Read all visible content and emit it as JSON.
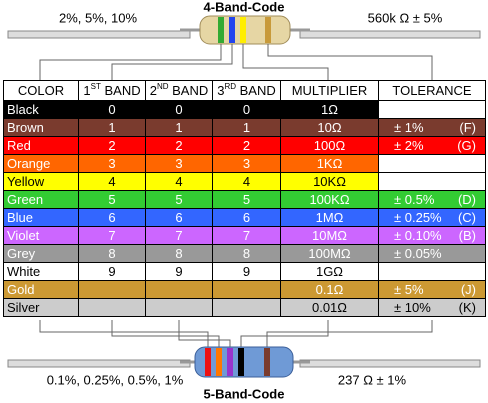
{
  "top": {
    "title": "4-Band-Code",
    "left_label": "2%, 5%, 10%",
    "right_label": "560k Ω  ± 5%"
  },
  "bottom": {
    "title": "5-Band-Code",
    "left_label": "0.1%, 0.25%, 0.5%, 1%",
    "right_label": "237 Ω  ± 1%"
  },
  "table": {
    "headers": [
      {
        "text": "COLOR"
      },
      {
        "num": "1",
        "sup": "ST",
        "text": "BAND"
      },
      {
        "num": "2",
        "sup": "ND",
        "text": "BAND"
      },
      {
        "num": "3",
        "sup": "RD",
        "text": "BAND"
      },
      {
        "text": "MULTIPLIER"
      },
      {
        "text": "TOLERANCE"
      }
    ],
    "rows": [
      {
        "color": "Black",
        "band1": "0",
        "band2": "0",
        "band3": "0",
        "multiplier": "1Ω"
      },
      {
        "color": "Brown",
        "band1": "1",
        "band2": "1",
        "band3": "1",
        "multiplier": "10Ω",
        "tolerance": "± 1%",
        "code": "(F)"
      },
      {
        "color": "Red",
        "band1": "2",
        "band2": "2",
        "band3": "2",
        "multiplier": "100Ω",
        "tolerance": "± 2%",
        "code": "(G)"
      },
      {
        "color": "Orange",
        "band1": "3",
        "band2": "3",
        "band3": "3",
        "multiplier": "1KΩ"
      },
      {
        "color": "Yellow",
        "band1": "4",
        "band2": "4",
        "band3": "4",
        "multiplier": "10KΩ"
      },
      {
        "color": "Green",
        "band1": "5",
        "band2": "5",
        "band3": "5",
        "multiplier": "100KΩ",
        "tolerance": "± 0.5%",
        "code": "(D)"
      },
      {
        "color": "Blue",
        "band1": "6",
        "band2": "6",
        "band3": "6",
        "multiplier": "1MΩ",
        "tolerance": "± 0.25%",
        "code": "(C)"
      },
      {
        "color": "Violet",
        "band1": "7",
        "band2": "7",
        "band3": "7",
        "multiplier": "10MΩ",
        "tolerance": "± 0.10%",
        "code": "(B)"
      },
      {
        "color": "Grey",
        "band1": "8",
        "band2": "8",
        "band3": "8",
        "multiplier": "100MΩ",
        "tolerance": "± 0.05%"
      },
      {
        "color": "White",
        "band1": "9",
        "band2": "9",
        "band3": "9",
        "multiplier": "1GΩ"
      },
      {
        "color": "Gold",
        "multiplier": "0.1Ω",
        "tolerance": "± 5%",
        "code": "(J)"
      },
      {
        "color": "Silver",
        "multiplier": "0.01Ω",
        "tolerance": "± 10%",
        "code": "(K)"
      }
    ]
  }
}
